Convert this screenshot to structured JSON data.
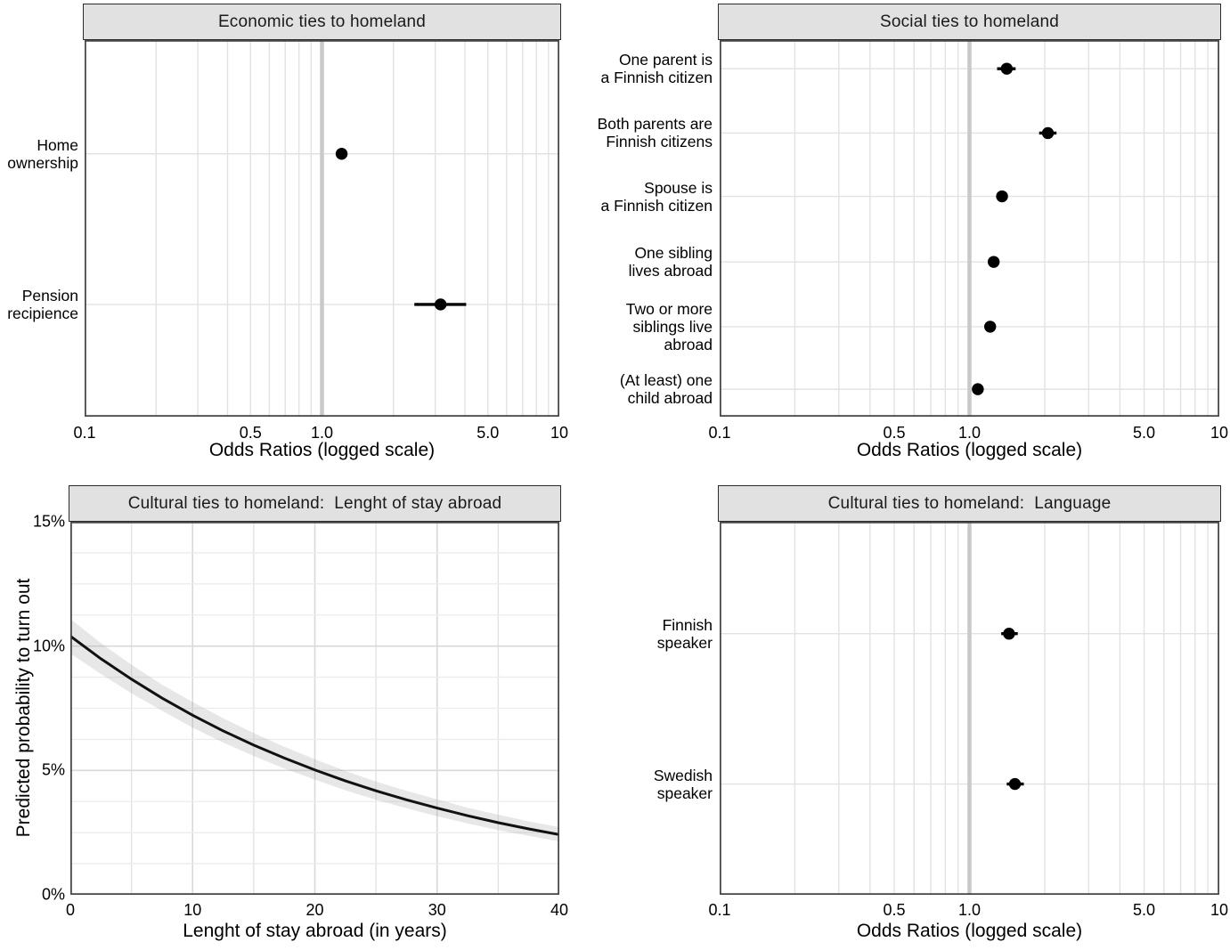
{
  "figure": {
    "background": "#ffffff",
    "strip_bg": "#e1e1e1",
    "strip_border": "#2b2b2b",
    "panel_border": "#3f3f3f",
    "grid_color": "#e2e2e2",
    "grid_major_color": "#d9d9d9",
    "reference_line_color": "#c9c9c9",
    "point_color": "#000000",
    "line_color": "#111111",
    "band_color": "#a8a8a8"
  },
  "chart_data": [
    {
      "id": "economic",
      "type": "scatter",
      "title": "Economic ties to homeland",
      "xlabel": "Odds Ratios (logged scale)",
      "x_scale": "log10",
      "xlim": [
        0.1,
        10
      ],
      "x_ticks": [
        "0.1",
        "0.5",
        "1.0",
        "5.0",
        "10"
      ],
      "x_tick_values": [
        0.1,
        0.5,
        1.0,
        5.0,
        10
      ],
      "reference_line_x": 1.0,
      "grid_minor_x": [
        0.2,
        0.3,
        0.4,
        0.5,
        0.6,
        0.7,
        0.8,
        0.9,
        2,
        3,
        4,
        5,
        6,
        7,
        8,
        9
      ],
      "categories": [
        [
          "Home",
          "ownership"
        ],
        [
          "Pension",
          "recipience"
        ]
      ],
      "estimates": [
        1.21,
        3.16
      ],
      "ci_low": [
        null,
        2.45
      ],
      "ci_high": [
        null,
        4.05
      ],
      "cat_frac": [
        0.302,
        0.702
      ]
    },
    {
      "id": "social",
      "type": "scatter",
      "title": "Social ties to homeland",
      "xlabel": "Odds Ratios (logged scale)",
      "x_scale": "log10",
      "xlim": [
        0.1,
        10
      ],
      "x_ticks": [
        "0.1",
        "0.5",
        "1.0",
        "5.0",
        "10"
      ],
      "x_tick_values": [
        0.1,
        0.5,
        1.0,
        5.0,
        10
      ],
      "reference_line_x": 1.0,
      "grid_minor_x": [
        0.2,
        0.3,
        0.4,
        0.5,
        0.6,
        0.7,
        0.8,
        0.9,
        2,
        3,
        4,
        5,
        6,
        7,
        8,
        9
      ],
      "categories": [
        [
          "One parent is",
          "a Finnish citizen"
        ],
        [
          "Both parents are",
          "Finnish citizens"
        ],
        [
          "Spouse is",
          "a Finnish citizen"
        ],
        [
          "One sibling",
          "lives abroad"
        ],
        [
          "Two or more",
          "siblings live",
          "abroad"
        ],
        [
          "(At least) one",
          "child abroad"
        ]
      ],
      "estimates": [
        1.41,
        2.06,
        1.35,
        1.25,
        1.21,
        1.08
      ],
      "ci_low": [
        1.29,
        1.9,
        null,
        null,
        null,
        null
      ],
      "ci_high": [
        1.53,
        2.23,
        null,
        null,
        null,
        null
      ],
      "cat_frac": [
        0.076,
        0.247,
        0.415,
        0.589,
        0.761,
        0.927
      ]
    },
    {
      "id": "stay",
      "type": "line",
      "title": "Cultural ties to homeland:  Lenght of stay abroad",
      "xlabel": "Lenght of stay abroad (in years)",
      "ylabel": "Predicted probability to turn out",
      "xlim": [
        0,
        40
      ],
      "ylim_pct": [
        0,
        15
      ],
      "x_ticks": [
        "0",
        "10",
        "20",
        "30",
        "40"
      ],
      "x_tick_values": [
        0,
        10,
        20,
        30,
        40
      ],
      "y_ticks": [
        "0%",
        "5%",
        "10%",
        "15%"
      ],
      "y_tick_values": [
        0,
        5,
        10,
        15
      ],
      "x_grid_step": 5,
      "y_grid_step": 1.25,
      "x": [
        0,
        2.5,
        5,
        7.5,
        10,
        12.5,
        15,
        17.5,
        20,
        22.5,
        25,
        27.5,
        30,
        32.5,
        35,
        37.5,
        40
      ],
      "y_pct": [
        10.4,
        9.49,
        8.67,
        7.91,
        7.22,
        6.59,
        6.02,
        5.5,
        5.02,
        4.58,
        4.18,
        3.82,
        3.49,
        3.18,
        2.9,
        2.65,
        2.42
      ],
      "band_high_pct": [
        11.1,
        10.12,
        9.25,
        8.45,
        7.75,
        7.1,
        6.5,
        5.95,
        5.45,
        4.98,
        4.55,
        4.18,
        3.84,
        3.5,
        3.22,
        2.95,
        2.72
      ],
      "band_low_pct": [
        9.7,
        8.88,
        8.1,
        7.4,
        6.72,
        6.12,
        5.58,
        5.08,
        4.63,
        4.2,
        3.82,
        3.48,
        3.16,
        2.87,
        2.6,
        2.37,
        2.14
      ]
    },
    {
      "id": "language",
      "type": "scatter",
      "title": "Cultural ties to homeland:  Language",
      "xlabel": "Odds Ratios (logged scale)",
      "x_scale": "log10",
      "xlim": [
        0.1,
        10
      ],
      "x_ticks": [
        "0.1",
        "0.5",
        "1.0",
        "5.0",
        "10"
      ],
      "x_tick_values": [
        0.1,
        0.5,
        1.0,
        5.0,
        10
      ],
      "reference_line_x": 1.0,
      "grid_minor_x": [
        0.2,
        0.3,
        0.4,
        0.5,
        0.6,
        0.7,
        0.8,
        0.9,
        2,
        3,
        4,
        5,
        6,
        7,
        8,
        9
      ],
      "categories": [
        [
          "Finnish",
          "speaker"
        ],
        [
          "Swedish",
          "speaker"
        ]
      ],
      "estimates": [
        1.44,
        1.52
      ],
      "ci_low": [
        1.34,
        1.41
      ],
      "ci_high": [
        1.56,
        1.65
      ],
      "cat_frac": [
        0.3,
        0.703
      ]
    }
  ]
}
